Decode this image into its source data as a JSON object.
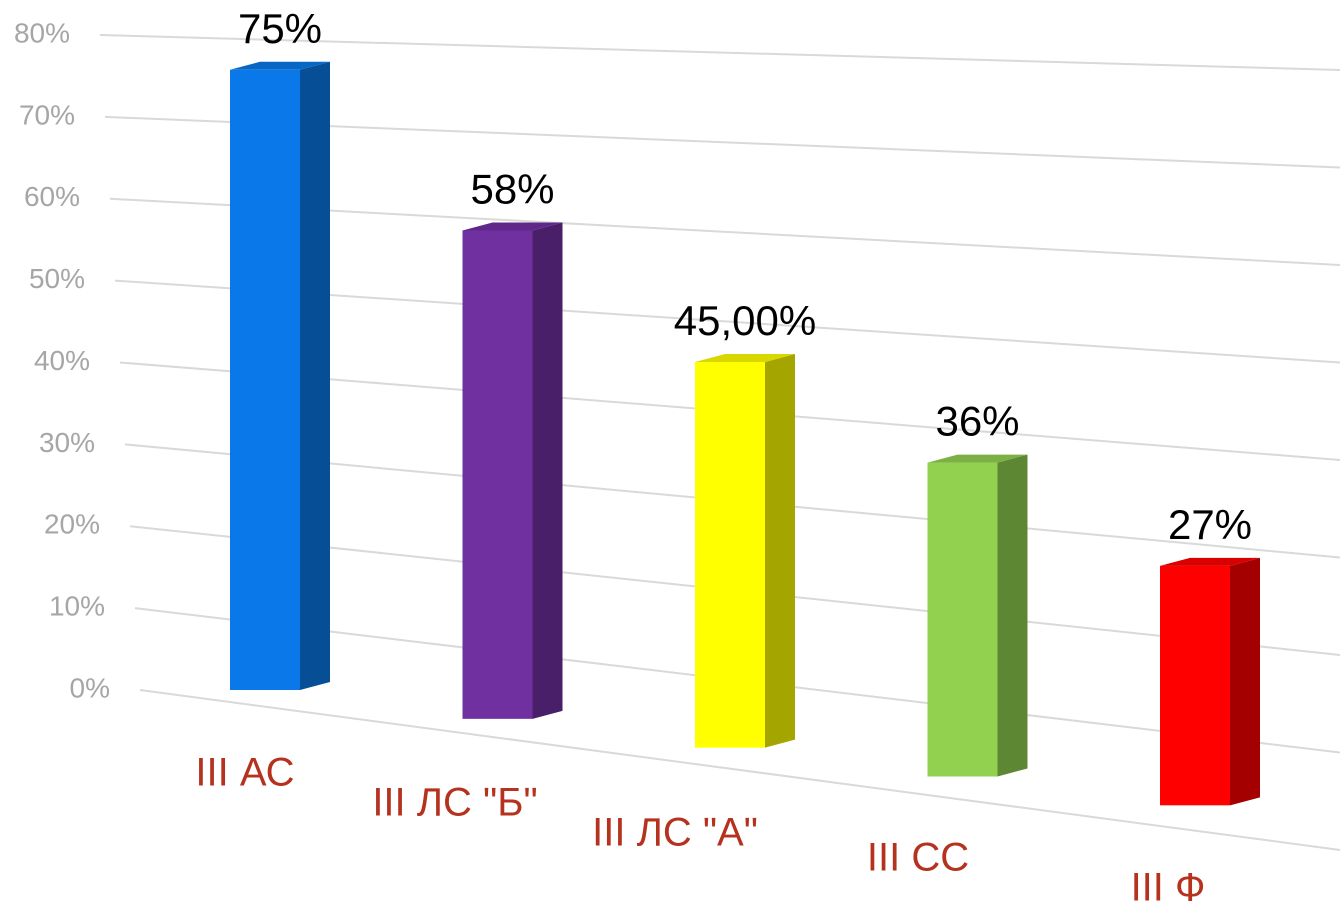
{
  "chart_data": {
    "type": "bar3d",
    "categories": [
      "III АС",
      "III ЛС \"Б\"",
      "III ЛС \"А\"",
      "III СС",
      "III Ф"
    ],
    "values": [
      75,
      58,
      45,
      36,
      27
    ],
    "value_labels": [
      "75%",
      "58%",
      "45,00%",
      "36%",
      "27%"
    ],
    "colors": [
      "#0a78e8",
      "#7030a0",
      "#ffff00",
      "#92d050",
      "#ff0000"
    ],
    "ylim": [
      0,
      80
    ],
    "yticks": [
      {
        "value": 0,
        "label": "0%"
      },
      {
        "value": 10,
        "label": "10%"
      },
      {
        "value": 20,
        "label": "20%"
      },
      {
        "value": 30,
        "label": "30%"
      },
      {
        "value": 40,
        "label": "40%"
      },
      {
        "value": 50,
        "label": "50%"
      },
      {
        "value": 60,
        "label": "60%"
      },
      {
        "value": 70,
        "label": "70%"
      },
      {
        "value": 80,
        "label": "80%"
      }
    ],
    "grid": true
  }
}
